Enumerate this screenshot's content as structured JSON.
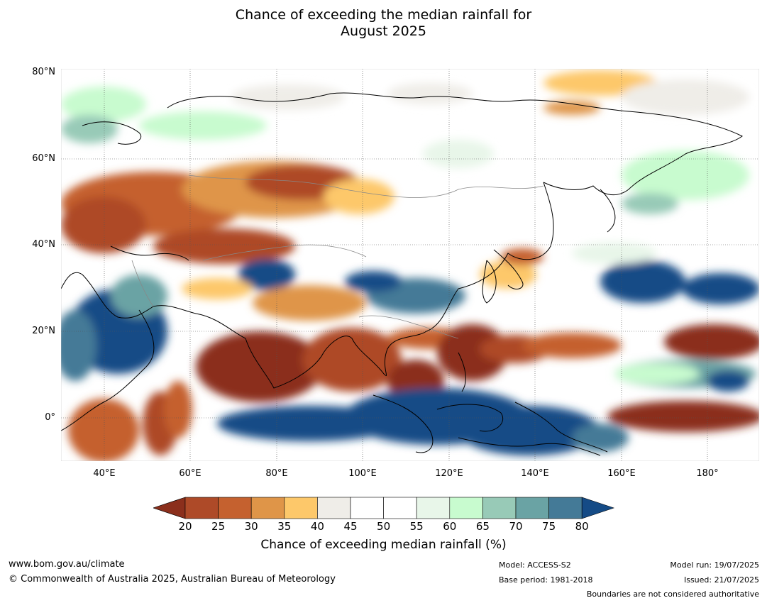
{
  "title": {
    "line1": "Chance of exceeding the median rainfall for",
    "line2": "August 2025"
  },
  "map": {
    "lat_labels": [
      "80°N",
      "60°N",
      "40°N",
      "20°N",
      "0°"
    ],
    "lon_labels": [
      "40°E",
      "60°E",
      "80°E",
      "100°E",
      "120°E",
      "140°E",
      "160°E",
      "180°"
    ],
    "lon_range": [
      30,
      192
    ],
    "lat_range": [
      -10,
      80
    ]
  },
  "colorbar": {
    "ticks": [
      "20",
      "25",
      "30",
      "35",
      "40",
      "45",
      "50",
      "55",
      "60",
      "65",
      "70",
      "75",
      "80"
    ],
    "colors": [
      "#ae4a28",
      "#c5612f",
      "#df9548",
      "#fdc86a",
      "#efede8",
      "#ffffff",
      "#ffffff",
      "#e8f6e9",
      "#c8fbcf",
      "#98cab7",
      "#6aa3a4",
      "#447a97"
    ],
    "under_color": "#8b2f1c",
    "over_color": "#154b86",
    "label": "Chance of exceeding median rainfall (%)"
  },
  "footer": {
    "website": "www.bom.gov.au/climate",
    "copyright": "© Commonwealth of Australia 2025, Australian Bureau of Meteorology",
    "model": "Model: ACCESS-S2",
    "base_period": "Base period: 1981-2018",
    "model_run": "Model run: 19/07/2025",
    "issued": "Issued: 21/07/2025",
    "disclaimer": "Boundaries are not considered authoritative"
  }
}
